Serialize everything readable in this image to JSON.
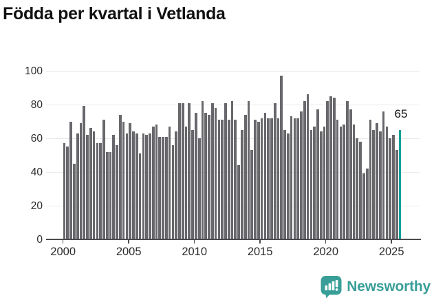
{
  "title": "Födda per kvartal i Vetlanda",
  "branding": {
    "name": "Newsworthy",
    "logo_icon": "bar-chart-speech-bubble-icon",
    "color": "#399e98"
  },
  "colors": {
    "bar": "#68686c",
    "highlight": "#00a09b",
    "gridline": "#e9e9e9",
    "axis": "#4c4c50",
    "title_text": "#111111",
    "tick_text": "#2b2b2b"
  },
  "chart_data": {
    "type": "bar",
    "title": "Födda per kvartal i Vetlanda",
    "xlabel": "",
    "ylabel": "",
    "x_tick_labels": [
      "2000",
      "2005",
      "2010",
      "2015",
      "2020",
      "2025"
    ],
    "y_tick_labels": [
      "0",
      "20",
      "40",
      "60",
      "80",
      "100"
    ],
    "ylim": [
      0,
      100
    ],
    "grid": true,
    "legend": "none",
    "bars_per_year": 4,
    "values": [
      57,
      55,
      70,
      45,
      63,
      69,
      79,
      62,
      66,
      64,
      57,
      57,
      71,
      52,
      52,
      62,
      56,
      74,
      70,
      63,
      69,
      64,
      63,
      51,
      63,
      62,
      63,
      67,
      68,
      61,
      61,
      61,
      67,
      56,
      64,
      81,
      81,
      67,
      81,
      65,
      75,
      60,
      82,
      75,
      74,
      81,
      78,
      71,
      71,
      81,
      71,
      82,
      71,
      44,
      65,
      74,
      82,
      53,
      71,
      70,
      72,
      75,
      72,
      72,
      81,
      72,
      97,
      65,
      63,
      73,
      72,
      72,
      76,
      82,
      86,
      65,
      67,
      77,
      64,
      67,
      82,
      85,
      84,
      71,
      67,
      68,
      82,
      77,
      68,
      60,
      58,
      39,
      42,
      71,
      65,
      69,
      64,
      76,
      67,
      60,
      62,
      53,
      65
    ],
    "highlight_last": true,
    "last_value_label": "65"
  }
}
